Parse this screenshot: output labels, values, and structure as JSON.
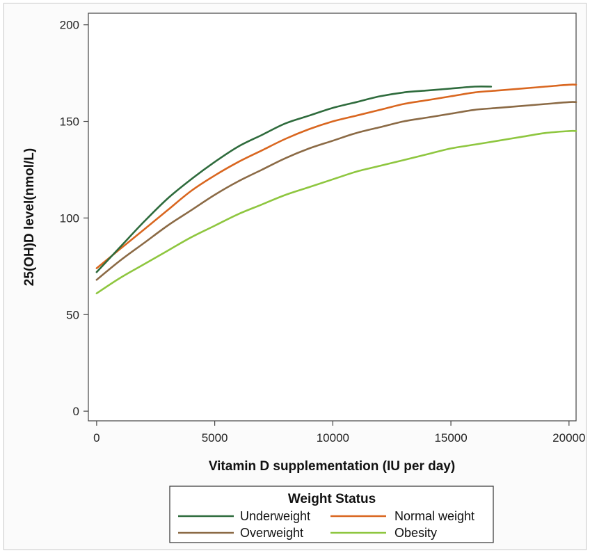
{
  "chart_data": {
    "type": "line",
    "title": "",
    "xlabel": "Vitamin D supplementation (IU per day)",
    "ylabel": "25(OH)D level(nmol/L)",
    "xlim": [
      -350,
      20300
    ],
    "ylim": [
      -5,
      206
    ],
    "xticks": [
      0,
      5000,
      10000,
      15000,
      20000
    ],
    "yticks": [
      0,
      50,
      100,
      150,
      200
    ],
    "xtick_labels": [
      "0",
      "5000",
      "10000",
      "15000",
      "20000"
    ],
    "ytick_labels": [
      "0",
      "50",
      "100",
      "150",
      "200"
    ],
    "grid": false,
    "legend": {
      "title": "Weight Status",
      "position": "bottom"
    },
    "series": [
      {
        "name": "Underweight",
        "color": "#2e6b3c",
        "x": [
          0,
          1000,
          2000,
          3000,
          4000,
          5000,
          6000,
          7000,
          8000,
          9000,
          10000,
          11000,
          12000,
          13000,
          14000,
          15000,
          16000,
          16700
        ],
        "y": [
          72,
          85,
          98,
          110,
          120,
          129,
          137,
          143,
          149,
          153,
          157,
          160,
          163,
          165,
          166,
          167,
          168,
          168
        ]
      },
      {
        "name": "Normal weight",
        "color": "#d9661f",
        "x": [
          0,
          1000,
          2000,
          3000,
          4000,
          5000,
          6000,
          7000,
          8000,
          9000,
          10000,
          11000,
          12000,
          13000,
          14000,
          15000,
          16000,
          17000,
          18000,
          19000,
          20000,
          20300
        ],
        "y": [
          74,
          84,
          94,
          104,
          114,
          122,
          129,
          135,
          141,
          146,
          150,
          153,
          156,
          159,
          161,
          163,
          165,
          166,
          167,
          168,
          169,
          169
        ]
      },
      {
        "name": "Overweight",
        "color": "#8b6a45",
        "x": [
          0,
          1000,
          2000,
          3000,
          4000,
          5000,
          6000,
          7000,
          8000,
          9000,
          10000,
          11000,
          12000,
          13000,
          14000,
          15000,
          16000,
          17000,
          18000,
          19000,
          20000,
          20300
        ],
        "y": [
          68,
          78,
          87,
          96,
          104,
          112,
          119,
          125,
          131,
          136,
          140,
          144,
          147,
          150,
          152,
          154,
          156,
          157,
          158,
          159,
          160,
          160
        ]
      },
      {
        "name": "Obesity",
        "color": "#8ec63f",
        "x": [
          0,
          1000,
          2000,
          3000,
          4000,
          5000,
          6000,
          7000,
          8000,
          9000,
          10000,
          11000,
          12000,
          13000,
          14000,
          15000,
          16000,
          17000,
          18000,
          19000,
          20000,
          20300
        ],
        "y": [
          61,
          69,
          76,
          83,
          90,
          96,
          102,
          107,
          112,
          116,
          120,
          124,
          127,
          130,
          133,
          136,
          138,
          140,
          142,
          144,
          145,
          145
        ]
      }
    ]
  }
}
